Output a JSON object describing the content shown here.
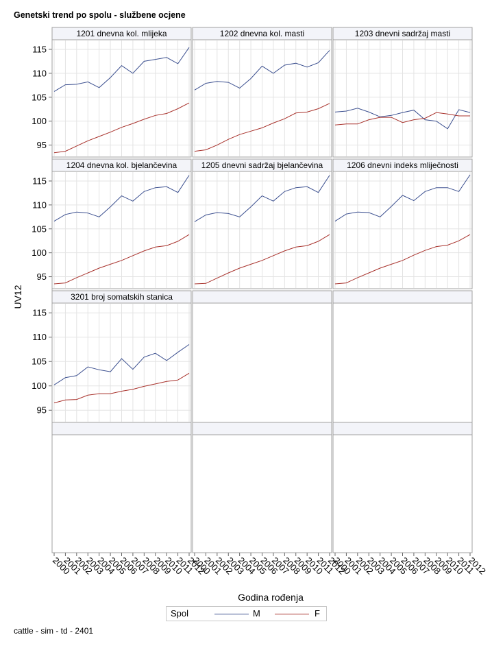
{
  "title": "Genetski trend po spolu - službene ocjene",
  "footnote": "cattle - sim - td - 2401",
  "legend": {
    "title": "Spol",
    "items": [
      {
        "label": "M",
        "color": "#3b4f8f"
      },
      {
        "label": "F",
        "color": "#a8312b"
      }
    ]
  },
  "chart_data": {
    "type": "line",
    "xlabel": "Godina rođenja",
    "ylabel": "UV12",
    "x": [
      2000,
      2001,
      2002,
      2003,
      2004,
      2005,
      2006,
      2007,
      2008,
      2009,
      2010,
      2011,
      2012
    ],
    "yticks": [
      95,
      100,
      105,
      110,
      115
    ],
    "ylim": [
      92.5,
      117
    ],
    "xlim": [
      2000,
      2012
    ],
    "grid": true,
    "panels": [
      {
        "label": "1201 dnevna kol. mlijeka",
        "series": [
          {
            "name": "M",
            "values": [
              106.2,
              107.6,
              107.7,
              108.2,
              107.0,
              109.1,
              111.6,
              110.0,
              112.5,
              112.9,
              113.3,
              112.0,
              115.4
            ]
          },
          {
            "name": "F",
            "values": [
              93.4,
              93.7,
              94.8,
              95.9,
              96.8,
              97.7,
              98.7,
              99.5,
              100.4,
              101.2,
              101.6,
              102.6,
              103.8
            ]
          }
        ]
      },
      {
        "label": "1202 dnevna kol. masti",
        "series": [
          {
            "name": "M",
            "values": [
              106.5,
              107.9,
              108.3,
              108.1,
              106.9,
              108.9,
              111.5,
              110.0,
              111.7,
              112.1,
              111.3,
              112.2,
              114.8
            ]
          },
          {
            "name": "F",
            "values": [
              93.7,
              94.0,
              95.0,
              96.2,
              97.2,
              97.9,
              98.6,
              99.6,
              100.5,
              101.7,
              101.9,
              102.6,
              103.7
            ]
          }
        ]
      },
      {
        "label": "1203 dnevni sadržaj masti",
        "series": [
          {
            "name": "M",
            "values": [
              101.9,
              102.1,
              102.7,
              101.9,
              100.9,
              101.2,
              101.8,
              102.3,
              100.3,
              100.0,
              98.4,
              102.4,
              101.8
            ]
          },
          {
            "name": "F",
            "values": [
              99.2,
              99.4,
              99.4,
              100.3,
              100.8,
              100.8,
              99.7,
              100.3,
              100.6,
              101.8,
              101.5,
              101.1,
              101.1
            ]
          }
        ]
      },
      {
        "label": "1204 dnevna kol. bjelančevina",
        "series": [
          {
            "name": "M",
            "values": [
              106.6,
              108.0,
              108.5,
              108.3,
              107.5,
              109.6,
              111.9,
              110.8,
              112.8,
              113.6,
              113.8,
              112.6,
              116.2
            ]
          },
          {
            "name": "F",
            "values": [
              93.5,
              93.7,
              94.8,
              95.8,
              96.8,
              97.6,
              98.4,
              99.4,
              100.4,
              101.2,
              101.5,
              102.4,
              103.8
            ]
          }
        ]
      },
      {
        "label": "1205 dnevni sadržaj bjelančevina",
        "series": [
          {
            "name": "M",
            "values": [
              106.5,
              107.9,
              108.4,
              108.2,
              107.5,
              109.6,
              111.9,
              110.8,
              112.8,
              113.6,
              113.8,
              112.6,
              116.2
            ]
          },
          {
            "name": "F",
            "values": [
              93.5,
              93.6,
              94.7,
              95.8,
              96.8,
              97.6,
              98.4,
              99.4,
              100.4,
              101.2,
              101.5,
              102.4,
              103.8
            ]
          }
        ]
      },
      {
        "label": "1206 dnevni indeks mliječnosti",
        "series": [
          {
            "name": "M",
            "values": [
              106.6,
              108.1,
              108.5,
              108.4,
              107.5,
              109.7,
              112.0,
              110.9,
              112.8,
              113.6,
              113.6,
              112.8,
              116.3
            ]
          },
          {
            "name": "F",
            "values": [
              93.5,
              93.7,
              94.8,
              95.8,
              96.8,
              97.6,
              98.4,
              99.5,
              100.5,
              101.3,
              101.6,
              102.5,
              103.8
            ]
          }
        ]
      },
      {
        "label": "3201 broj somatskih stanica",
        "series": [
          {
            "name": "M",
            "values": [
              100.2,
              101.7,
              102.1,
              103.9,
              103.3,
              102.9,
              105.6,
              103.4,
              105.9,
              106.7,
              105.2,
              106.9,
              108.5
            ]
          },
          {
            "name": "F",
            "values": [
              96.5,
              97.1,
              97.2,
              98.1,
              98.4,
              98.4,
              98.9,
              99.3,
              99.9,
              100.4,
              100.9,
              101.2,
              102.6
            ]
          }
        ]
      }
    ]
  }
}
